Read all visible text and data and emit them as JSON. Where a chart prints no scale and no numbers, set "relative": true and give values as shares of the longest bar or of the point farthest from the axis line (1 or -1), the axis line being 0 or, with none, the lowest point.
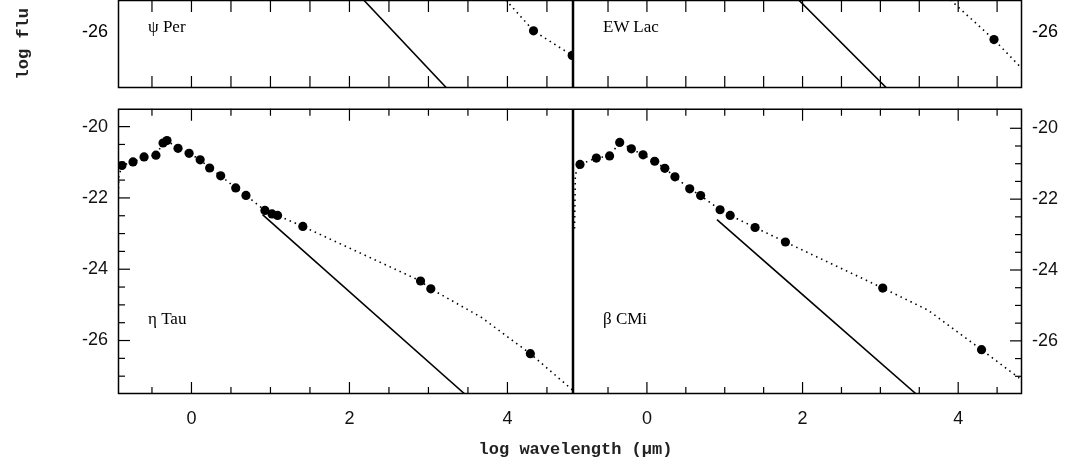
{
  "chart_data": [
    {
      "type": "scatter",
      "ylabel": "log flu",
      "annotations": [
        "ψ Per",
        "-26"
      ],
      "relative": true,
      "tick_labels": false,
      "xlim": [
        -0.93,
        4.83
      ],
      "xticks": [
        -0.5,
        0,
        0.5,
        1,
        1.5,
        2,
        2.5,
        3,
        3.5,
        4,
        4.5
      ],
      "series": [
        {
          "type": "scatter",
          "marker": "circle",
          "color": "#000000",
          "x": [
            4.33,
            4.82
          ],
          "values": [
            0.65,
            0.37
          ]
        },
        {
          "type": "line",
          "marker": "none",
          "line_style": "dotted",
          "color": "#000000",
          "x": [
            3.98,
            4.33,
            4.82
          ],
          "values": [
            1,
            0.65,
            0.37
          ]
        },
        {
          "type": "line",
          "marker": "none",
          "line_style": "solid",
          "color": "#000000",
          "x": [
            2.18,
            3.23
          ],
          "values": [
            1,
            0
          ]
        }
      ]
    },
    {
      "type": "scatter",
      "annotations": [
        "EW Lac",
        "-26"
      ],
      "relative": true,
      "tick_labels": false,
      "xlim": [
        -0.95,
        4.82
      ],
      "xticks": [
        -0.5,
        0,
        0.5,
        1,
        1.5,
        2,
        2.5,
        3,
        3.5,
        4,
        4.5
      ],
      "series": [
        {
          "type": "scatter",
          "marker": "circle",
          "color": "#000000",
          "x": [
            4.46
          ],
          "values": [
            0.55
          ]
        },
        {
          "type": "line",
          "marker": "none",
          "line_style": "dotted",
          "color": "#000000",
          "x": [
            3.9,
            4.46,
            4.82
          ],
          "values": [
            1,
            0.55,
            0.22
          ]
        },
        {
          "type": "line",
          "marker": "none",
          "line_style": "solid",
          "color": "#000000",
          "x": [
            1.95,
            3.08
          ],
          "values": [
            1,
            0
          ]
        }
      ]
    },
    {
      "type": "scatter",
      "xlabel": "log wavelength (μm)",
      "annotations": [
        "η Tau"
      ],
      "xlim": [
        -0.93,
        4.83
      ],
      "ylim": [
        -27.5,
        -19.5
      ],
      "xticks": [
        {
          "value": -0.5,
          "label": null
        },
        0,
        {
          "value": 0.5,
          "label": null
        },
        {
          "value": 1,
          "label": null
        },
        {
          "value": 1.5,
          "label": null
        },
        2,
        {
          "value": 2.5,
          "label": null
        },
        {
          "value": 3,
          "label": null
        },
        {
          "value": 3.5,
          "label": null
        },
        4,
        {
          "value": 4.5,
          "label": null
        }
      ],
      "yticks": [
        -20,
        {
          "value": -20.5,
          "label": null
        },
        {
          "value": -21,
          "label": null
        },
        {
          "value": -21.5,
          "label": null
        },
        -22,
        {
          "value": -22.5,
          "label": null
        },
        {
          "value": -23,
          "label": null
        },
        {
          "value": -23.5,
          "label": null
        },
        -24,
        {
          "value": -24.5,
          "label": null
        },
        {
          "value": -25,
          "label": null
        },
        {
          "value": -25.5,
          "label": null
        },
        -26,
        {
          "value": -26.5,
          "label": null
        },
        {
          "value": -27,
          "label": null
        }
      ],
      "series": [
        {
          "type": "scatter",
          "marker": "circle",
          "color": "#000000",
          "x": [
            -0.88,
            -0.74,
            -0.6,
            -0.45,
            -0.36,
            -0.31,
            -0.17,
            -0.03,
            0.11,
            0.23,
            0.37,
            0.56,
            0.69,
            0.93,
            1.02,
            1.09,
            1.41,
            2.9,
            3.03,
            4.29
          ],
          "values": [
            -21.09,
            -20.99,
            -20.85,
            -20.8,
            -20.46,
            -20.39,
            -20.61,
            -20.75,
            -20.93,
            -21.16,
            -21.38,
            -21.72,
            -21.93,
            -22.35,
            -22.45,
            -22.49,
            -22.8,
            -24.33,
            -24.55,
            -26.37
          ]
        },
        {
          "type": "line",
          "marker": "none",
          "line_style": "dotted",
          "color": "#000000",
          "x": [
            -0.93,
            -0.92,
            -0.88,
            -0.74,
            -0.6,
            -0.45,
            -0.36,
            -0.31,
            -0.17,
            -0.03,
            0.11,
            0.23,
            0.37,
            0.56,
            0.69,
            0.93,
            1.02,
            1.09,
            1.41,
            2.9,
            3.03,
            3.67,
            4.29,
            4.83
          ],
          "values": [
            -22.2,
            -21.4,
            -21.09,
            -20.99,
            -20.85,
            -20.8,
            -20.46,
            -20.39,
            -20.61,
            -20.75,
            -20.93,
            -21.16,
            -21.38,
            -21.72,
            -21.93,
            -22.35,
            -22.45,
            -22.49,
            -22.8,
            -24.33,
            -24.55,
            -25.35,
            -26.37,
            -27.4
          ]
        },
        {
          "type": "line",
          "marker": "none",
          "line_style": "solid",
          "color": "#000000",
          "x": [
            0.9,
            3.46
          ],
          "values": [
            -22.47,
            -27.5
          ]
        }
      ]
    },
    {
      "type": "scatter",
      "annotations": [
        "β CMi"
      ],
      "xlim": [
        -0.95,
        4.82
      ],
      "ylim": [
        -27.5,
        -19.45
      ],
      "xticks": [
        {
          "value": -0.5,
          "label": null
        },
        0,
        {
          "value": 0.5,
          "label": null
        },
        {
          "value": 1,
          "label": null
        },
        {
          "value": 1.5,
          "label": null
        },
        2,
        {
          "value": 2.5,
          "label": null
        },
        {
          "value": 3,
          "label": null
        },
        {
          "value": 3.5,
          "label": null
        },
        4,
        {
          "value": 4.5,
          "label": null
        }
      ],
      "yticks": [
        -20,
        {
          "value": -20.5,
          "label": null
        },
        {
          "value": -21,
          "label": null
        },
        {
          "value": -21.5,
          "label": null
        },
        -22,
        {
          "value": -22.5,
          "label": null
        },
        {
          "value": -23,
          "label": null
        },
        {
          "value": -23.5,
          "label": null
        },
        -24,
        {
          "value": -24.5,
          "label": null
        },
        {
          "value": -25,
          "label": null
        },
        {
          "value": -25.5,
          "label": null
        },
        -26,
        {
          "value": -26.5,
          "label": null
        },
        {
          "value": -27,
          "label": null
        }
      ],
      "series": [
        {
          "type": "scatter",
          "marker": "circle",
          "color": "#000000",
          "x": [
            -0.86,
            -0.65,
            -0.48,
            -0.35,
            -0.2,
            -0.05,
            0.1,
            0.23,
            0.36,
            0.55,
            0.69,
            0.94,
            1.07,
            1.39,
            1.78,
            3.03,
            4.3
          ],
          "values": [
            -21.02,
            -20.84,
            -20.78,
            -20.4,
            -20.58,
            -20.75,
            -20.93,
            -21.13,
            -21.37,
            -21.71,
            -21.9,
            -22.3,
            -22.46,
            -22.8,
            -23.21,
            -24.51,
            -26.25
          ]
        },
        {
          "type": "line",
          "marker": "none",
          "line_style": "dotted",
          "color": "#000000",
          "x": [
            -0.93,
            -0.92,
            -0.86,
            -0.65,
            -0.48,
            -0.35,
            -0.2,
            -0.05,
            0.1,
            0.23,
            0.36,
            0.55,
            0.69,
            0.94,
            1.07,
            1.39,
            1.78,
            3.03,
            3.61,
            4.3,
            4.82
          ],
          "values": [
            -22.83,
            -21.3,
            -21.02,
            -20.84,
            -20.78,
            -20.4,
            -20.58,
            -20.75,
            -20.93,
            -21.13,
            -21.37,
            -21.71,
            -21.9,
            -22.3,
            -22.46,
            -22.8,
            -23.21,
            -24.51,
            -25.13,
            -26.25,
            -27.11
          ]
        },
        {
          "type": "line",
          "marker": "none",
          "line_style": "solid",
          "color": "#000000",
          "x": [
            0.9,
            3.46
          ],
          "values": [
            -22.58,
            -27.5
          ]
        }
      ]
    }
  ]
}
